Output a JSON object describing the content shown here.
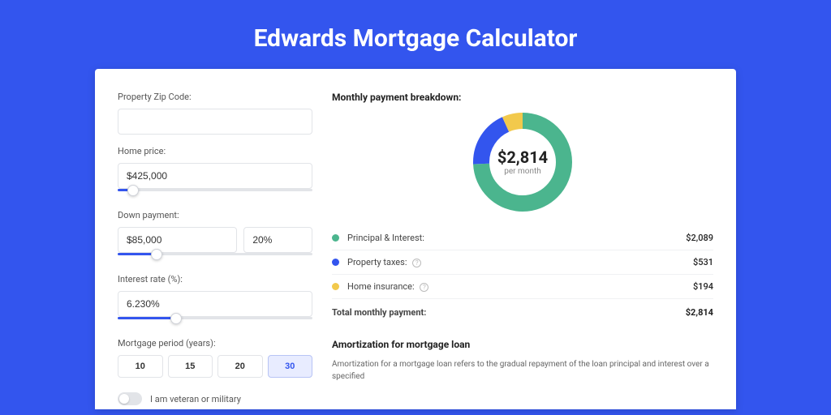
{
  "page": {
    "title": "Edwards Mortgage Calculator"
  },
  "colors": {
    "page_bg": "#3355ee",
    "card_bg": "#ffffff",
    "accent": "#3355ee",
    "series_principal": "#4bb58e",
    "series_taxes": "#3355ee",
    "series_insurance": "#f2c94c",
    "border": "#e2e4e8"
  },
  "form": {
    "zip": {
      "label": "Property Zip Code:",
      "value": ""
    },
    "home_price": {
      "label": "Home price:",
      "value": "$425,000",
      "slider_pct": 8
    },
    "down_payment": {
      "label": "Down payment:",
      "amount": "$85,000",
      "percent": "20%",
      "slider_pct": 20
    },
    "interest_rate": {
      "label": "Interest rate (%):",
      "value": "6.230%",
      "slider_pct": 30
    },
    "period": {
      "label": "Mortgage period (years):",
      "options": [
        "10",
        "15",
        "20",
        "30"
      ],
      "active_index": 3
    },
    "veteran": {
      "label": "I am veteran or military",
      "checked": false
    }
  },
  "breakdown": {
    "title": "Monthly payment breakdown:",
    "center_amount": "$2,814",
    "center_sub": "per month",
    "donut": {
      "type": "donut",
      "size": 122,
      "thickness": 20,
      "background_color": "#ffffff",
      "slices": [
        {
          "label": "Principal & Interest:",
          "value": 2089,
          "color": "#4bb58e",
          "pct": 74.2
        },
        {
          "label": "Property taxes:",
          "value": 531,
          "color": "#3355ee",
          "pct": 18.9
        },
        {
          "label": "Home insurance:",
          "value": 194,
          "color": "#f2c94c",
          "pct": 6.9
        }
      ]
    },
    "rows": [
      {
        "dot": "#4bb58e",
        "label": "Principal & Interest:",
        "value": "$2,089",
        "info": false
      },
      {
        "dot": "#3355ee",
        "label": "Property taxes:",
        "value": "$531",
        "info": true
      },
      {
        "dot": "#f2c94c",
        "label": "Home insurance:",
        "value": "$194",
        "info": true
      }
    ],
    "total": {
      "label": "Total monthly payment:",
      "value": "$2,814"
    }
  },
  "amortization": {
    "title": "Amortization for mortgage loan",
    "text": "Amortization for a mortgage loan refers to the gradual repayment of the loan principal and interest over a specified"
  }
}
